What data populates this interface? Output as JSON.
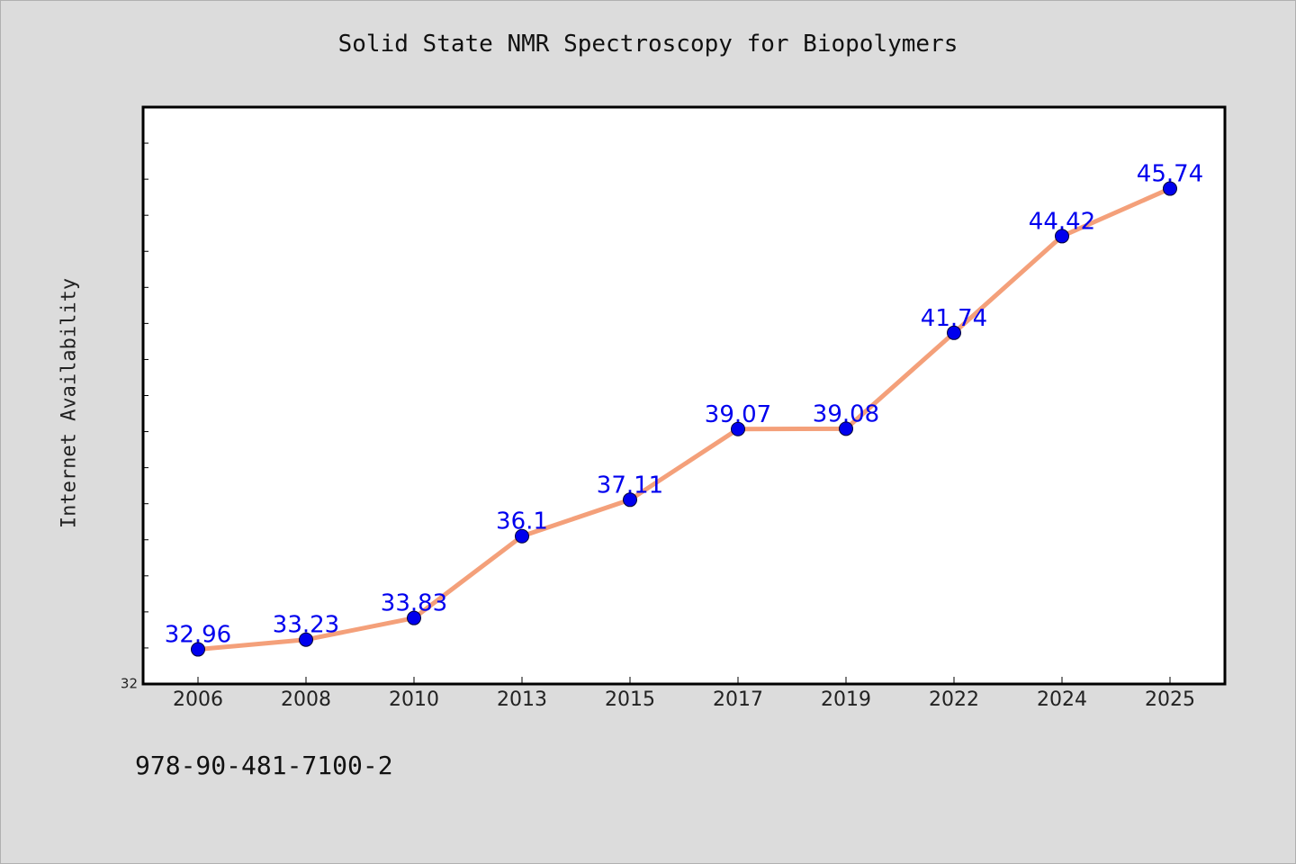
{
  "chart_data": {
    "type": "line",
    "title": "Solid State NMR Spectroscopy for Biopolymers",
    "ylabel": "Internet Availability",
    "xlabel": "",
    "categories": [
      "2006",
      "2008",
      "2010",
      "2013",
      "2015",
      "2017",
      "2019",
      "2022",
      "2024",
      "2025"
    ],
    "series": [
      {
        "values": [
          32.96,
          33.23,
          33.83,
          36.1,
          37.11,
          39.07,
          39.08,
          41.74,
          44.42,
          45.74
        ],
        "data_labels": [
          "32.96",
          "33.23",
          "33.83",
          "36.1",
          "37.11",
          "39.07",
          "39.08",
          "41.74",
          "44.42",
          "45.74"
        ],
        "line_color": "#f4a07a",
        "marker_color": "#0000ee",
        "label_color": "#0000ee"
      }
    ],
    "ylim": [
      32,
      48
    ],
    "y_tick_labels": [
      "32"
    ],
    "y_minor_tick_step": 1,
    "grid": false,
    "legend": "none"
  },
  "footer_text": "978-90-481-7100-2",
  "colors": {
    "background": "#dcdcdc",
    "plot_area": "#ffffff",
    "axis": "#000000"
  }
}
